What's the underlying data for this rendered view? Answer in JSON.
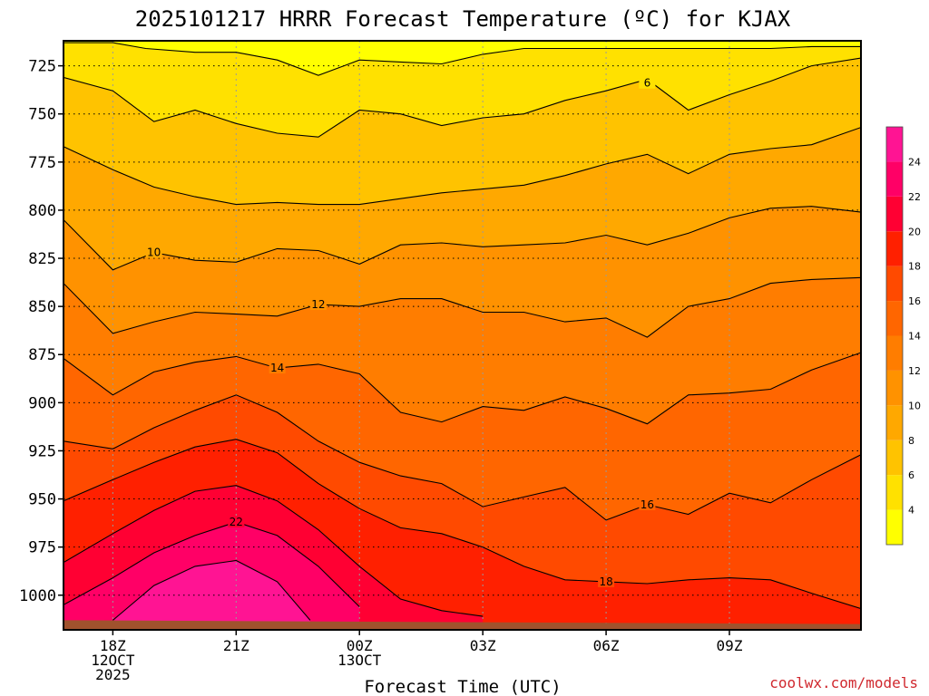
{
  "chart_data": {
    "type": "contour",
    "title": "2025101217 HRRR Forecast Temperature (ºC) for KJAX",
    "xlabel": "Forecast Time (UTC)",
    "ylabel": "",
    "credit": "coolwx.com/models",
    "y_scale": "pressure (hPa), decreasing upward",
    "ylim": [
      1018,
      712
    ],
    "xlim": [
      -1.2,
      18.2
    ],
    "y_ticks": [
      725,
      750,
      775,
      800,
      825,
      850,
      875,
      900,
      925,
      950,
      975,
      1000
    ],
    "x_ticks": [
      {
        "x": 0,
        "lines": [
          "18Z",
          "12OCT",
          "2025"
        ]
      },
      {
        "x": 3,
        "lines": [
          "21Z"
        ]
      },
      {
        "x": 6,
        "lines": [
          "00Z",
          "13OCT"
        ]
      },
      {
        "x": 9,
        "lines": [
          "03Z"
        ]
      },
      {
        "x": 12,
        "lines": [
          "06Z"
        ]
      },
      {
        "x": 15,
        "lines": [
          "09Z"
        ]
      }
    ],
    "grid": true,
    "colorbar": {
      "ticks": [
        4,
        6,
        8,
        10,
        12,
        14,
        16,
        18,
        20,
        22,
        24
      ],
      "levels": [
        {
          "lo": 2,
          "hi": 4,
          "color": "#ffff00"
        },
        {
          "lo": 4,
          "hi": 6,
          "color": "#ffe100"
        },
        {
          "lo": 6,
          "hi": 8,
          "color": "#ffc300"
        },
        {
          "lo": 8,
          "hi": 10,
          "color": "#ffa800"
        },
        {
          "lo": 10,
          "hi": 12,
          "color": "#ff9200"
        },
        {
          "lo": 12,
          "hi": 14,
          "color": "#ff7d00"
        },
        {
          "lo": 14,
          "hi": 16,
          "color": "#ff6600"
        },
        {
          "lo": 16,
          "hi": 18,
          "color": "#ff4a00"
        },
        {
          "lo": 18,
          "hi": 20,
          "color": "#ff2000"
        },
        {
          "lo": 20,
          "hi": 22,
          "color": "#ff0033"
        },
        {
          "lo": 22,
          "hi": 24,
          "color": "#ff0066"
        },
        {
          "lo": 24,
          "hi": 26,
          "color": "#ff1493"
        }
      ]
    },
    "terrain_color": "#a0522d",
    "surface_pressure": [
      [
        -1.2,
        1013
      ],
      [
        18.2,
        1015
      ]
    ],
    "isotherms": [
      {
        "value": 4,
        "label": null,
        "points": [
          [
            -1.2,
            713
          ],
          [
            0,
            713
          ],
          [
            0.8,
            716
          ],
          [
            2,
            718
          ],
          [
            3,
            718
          ],
          [
            4,
            722
          ],
          [
            5,
            730
          ],
          [
            6,
            722
          ],
          [
            7,
            723
          ],
          [
            8,
            724
          ],
          [
            9,
            719
          ],
          [
            10,
            716
          ],
          [
            11,
            716
          ],
          [
            12,
            716
          ],
          [
            13,
            716
          ],
          [
            14,
            716
          ],
          [
            15,
            716
          ],
          [
            16,
            716
          ],
          [
            17,
            715
          ],
          [
            18.2,
            715
          ]
        ]
      },
      {
        "value": 6,
        "label": {
          "x": 13,
          "p": 734
        },
        "points": [
          [
            -1.2,
            731
          ],
          [
            0,
            738
          ],
          [
            1,
            754
          ],
          [
            2,
            748
          ],
          [
            3,
            755
          ],
          [
            4,
            760
          ],
          [
            5,
            762
          ],
          [
            6,
            748
          ],
          [
            7,
            750
          ],
          [
            8,
            756
          ],
          [
            9,
            752
          ],
          [
            10,
            750
          ],
          [
            11,
            743
          ],
          [
            12,
            738
          ],
          [
            13,
            732
          ],
          [
            14,
            748
          ],
          [
            15,
            740
          ],
          [
            16,
            733
          ],
          [
            17,
            725
          ],
          [
            18.2,
            721
          ]
        ]
      },
      {
        "value": 8,
        "label": null,
        "points": [
          [
            -1.2,
            767
          ],
          [
            0,
            779
          ],
          [
            1,
            788
          ],
          [
            2,
            793
          ],
          [
            3,
            797
          ],
          [
            4,
            796
          ],
          [
            5,
            797
          ],
          [
            6,
            797
          ],
          [
            7,
            794
          ],
          [
            8,
            791
          ],
          [
            9,
            789
          ],
          [
            10,
            787
          ],
          [
            11,
            782
          ],
          [
            12,
            776
          ],
          [
            13,
            771
          ],
          [
            14,
            781
          ],
          [
            15,
            771
          ],
          [
            16,
            768
          ],
          [
            17,
            766
          ],
          [
            18.2,
            757
          ]
        ]
      },
      {
        "value": 10,
        "label": {
          "x": 1,
          "p": 822
        },
        "points": [
          [
            -1.2,
            805
          ],
          [
            0,
            831
          ],
          [
            1,
            822
          ],
          [
            2,
            826
          ],
          [
            3,
            827
          ],
          [
            4,
            820
          ],
          [
            5,
            821
          ],
          [
            6,
            828
          ],
          [
            7,
            818
          ],
          [
            8,
            817
          ],
          [
            9,
            819
          ],
          [
            10,
            818
          ],
          [
            11,
            817
          ],
          [
            12,
            813
          ],
          [
            13,
            818
          ],
          [
            14,
            812
          ],
          [
            15,
            804
          ],
          [
            16,
            799
          ],
          [
            17,
            798
          ],
          [
            18.2,
            801
          ]
        ]
      },
      {
        "value": 12,
        "label": {
          "x": 5,
          "p": 849
        },
        "points": [
          [
            -1.2,
            838
          ],
          [
            0,
            864
          ],
          [
            1,
            858
          ],
          [
            2,
            853
          ],
          [
            3,
            854
          ],
          [
            4,
            855
          ],
          [
            5,
            849
          ],
          [
            6,
            850
          ],
          [
            7,
            846
          ],
          [
            8,
            846
          ],
          [
            9,
            853
          ],
          [
            10,
            853
          ],
          [
            11,
            858
          ],
          [
            12,
            856
          ],
          [
            13,
            866
          ],
          [
            14,
            850
          ],
          [
            15,
            846
          ],
          [
            16,
            838
          ],
          [
            17,
            836
          ],
          [
            18.2,
            835
          ]
        ]
      },
      {
        "value": 14,
        "label": {
          "x": 4,
          "p": 882
        },
        "points": [
          [
            -1.2,
            877
          ],
          [
            0,
            896
          ],
          [
            1,
            884
          ],
          [
            2,
            879
          ],
          [
            3,
            876
          ],
          [
            4,
            882
          ],
          [
            5,
            880
          ],
          [
            6,
            885
          ],
          [
            7,
            905
          ],
          [
            8,
            910
          ],
          [
            9,
            902
          ],
          [
            10,
            904
          ],
          [
            11,
            897
          ],
          [
            12,
            903
          ],
          [
            13,
            911
          ],
          [
            14,
            896
          ],
          [
            15,
            895
          ],
          [
            16,
            893
          ],
          [
            17,
            883
          ],
          [
            18.2,
            874
          ]
        ]
      },
      {
        "value": 16,
        "label": {
          "x": 13,
          "p": 953
        },
        "points": [
          [
            -1.2,
            920
          ],
          [
            0,
            924
          ],
          [
            1,
            913
          ],
          [
            2,
            904
          ],
          [
            3,
            896
          ],
          [
            4,
            905
          ],
          [
            5,
            920
          ],
          [
            6,
            931
          ],
          [
            7,
            938
          ],
          [
            8,
            942
          ],
          [
            9,
            954
          ],
          [
            10,
            949
          ],
          [
            11,
            944
          ],
          [
            12,
            961
          ],
          [
            13,
            953
          ],
          [
            14,
            958
          ],
          [
            15,
            947
          ],
          [
            16,
            952
          ],
          [
            17,
            940
          ],
          [
            18.2,
            927
          ]
        ]
      },
      {
        "value": 18,
        "label": {
          "x": 12,
          "p": 993
        },
        "points": [
          [
            -1.2,
            951
          ],
          [
            0,
            940
          ],
          [
            1,
            931
          ],
          [
            2,
            923
          ],
          [
            3,
            919
          ],
          [
            4,
            926
          ],
          [
            5,
            942
          ],
          [
            6,
            955
          ],
          [
            7,
            965
          ],
          [
            8,
            968
          ],
          [
            9,
            975
          ],
          [
            10,
            985
          ],
          [
            11,
            992
          ],
          [
            12,
            993
          ],
          [
            13,
            994
          ],
          [
            14,
            992
          ],
          [
            15,
            991
          ],
          [
            16,
            992
          ],
          [
            17,
            999
          ],
          [
            18.2,
            1007
          ]
        ]
      },
      {
        "value": 20,
        "label": null,
        "points": [
          [
            -1.2,
            983
          ],
          [
            0,
            968
          ],
          [
            1,
            956
          ],
          [
            2,
            946
          ],
          [
            3,
            943
          ],
          [
            4,
            951
          ],
          [
            5,
            966
          ],
          [
            6,
            985
          ],
          [
            7,
            1002
          ],
          [
            8,
            1008
          ],
          [
            9,
            1011
          ]
        ]
      },
      {
        "value": 22,
        "label": {
          "x": 3,
          "p": 962
        },
        "points": [
          [
            -1.2,
            1005
          ],
          [
            0,
            991
          ],
          [
            1,
            978
          ],
          [
            2,
            969
          ],
          [
            3,
            962
          ],
          [
            4,
            969
          ],
          [
            5,
            985
          ],
          [
            6,
            1006
          ]
        ]
      },
      {
        "value": 24,
        "label": null,
        "points": [
          [
            0,
            1013
          ],
          [
            1,
            995
          ],
          [
            2,
            985
          ],
          [
            3,
            982
          ],
          [
            4,
            993
          ],
          [
            4.8,
            1013
          ]
        ]
      }
    ]
  }
}
